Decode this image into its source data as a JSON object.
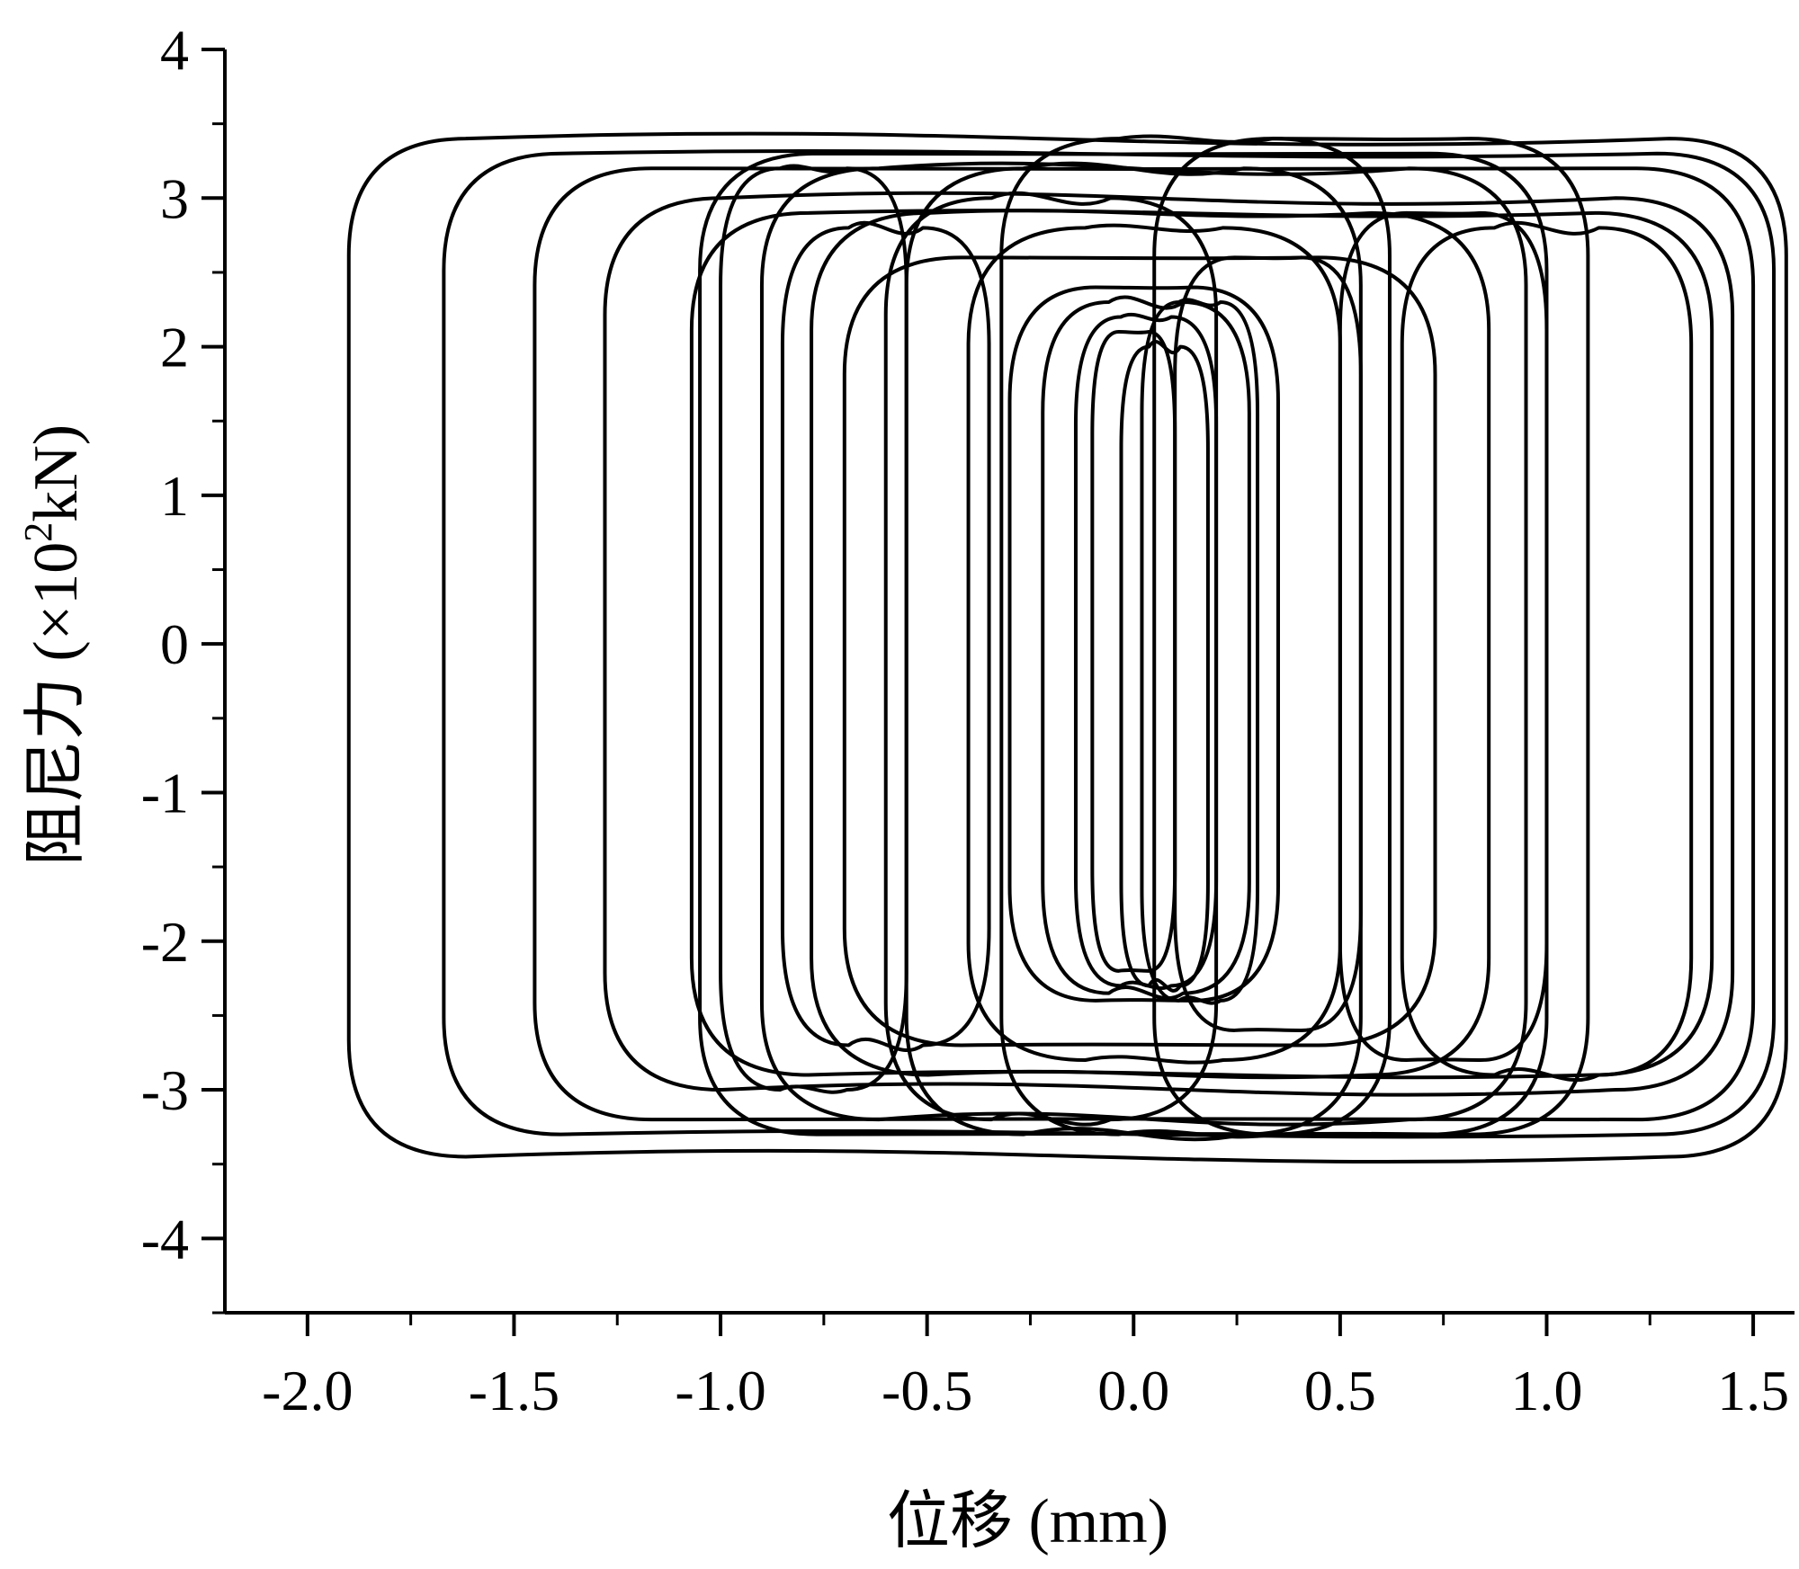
{
  "chart_data": {
    "type": "line",
    "title": "",
    "xlabel": "位移 (mm)",
    "ylabel_main": "阻尼力 (×10",
    "ylabel_sup": "2",
    "ylabel_tail": "kN)",
    "xlim": [
      -2.2,
      1.6
    ],
    "ylim": [
      -4.5,
      4.0
    ],
    "x_ticks": [
      -2.0,
      -1.5,
      -1.0,
      -0.5,
      0.0,
      0.5,
      1.0,
      1.5
    ],
    "x_tick_labels": [
      "-2.0",
      "-1.5",
      "-1.0",
      "-0.5",
      "0.0",
      "0.5",
      "1.0",
      "1.5"
    ],
    "y_ticks": [
      -4,
      -3,
      -2,
      -1,
      0,
      1,
      2,
      3,
      4
    ],
    "y_tick_labels": [
      "-4",
      "-3",
      "-2",
      "-1",
      "0",
      "1",
      "2",
      "3",
      "4"
    ],
    "grid": false,
    "legend": "none",
    "line_color": "#000000",
    "loops": [
      {
        "xmin": -1.9,
        "xmax": 1.58,
        "ytop": 3.4,
        "ybot": -3.45
      },
      {
        "xmin": -1.67,
        "xmax": 1.55,
        "ytop": 3.3,
        "ybot": -3.3
      },
      {
        "xmin": -1.45,
        "xmax": 1.5,
        "ytop": 3.2,
        "ybot": -3.2
      },
      {
        "xmin": -1.28,
        "xmax": 1.45,
        "ytop": 3.0,
        "ybot": -3.0
      },
      {
        "xmin": -1.07,
        "xmax": 1.4,
        "ytop": 2.9,
        "ybot": -2.9
      },
      {
        "xmin": -1.05,
        "xmax": 1.0,
        "ytop": 3.3,
        "ybot": -3.3
      },
      {
        "xmin": -0.9,
        "xmax": 0.95,
        "ytop": 3.2,
        "ybot": -3.2
      },
      {
        "xmin": -0.78,
        "xmax": 0.86,
        "ytop": 2.9,
        "ybot": -2.9
      },
      {
        "xmin": -0.7,
        "xmax": 0.73,
        "ytop": 2.6,
        "ybot": -2.7
      },
      {
        "xmin": -0.55,
        "xmax": 0.55,
        "ytop": 3.2,
        "ybot": -3.3
      },
      {
        "xmin": -0.4,
        "xmax": 0.5,
        "ytop": 2.8,
        "ybot": -2.8
      },
      {
        "xmin": -0.3,
        "xmax": 0.35,
        "ytop": 2.4,
        "ybot": -2.4
      },
      {
        "xmin": -0.22,
        "xmax": 0.28,
        "ytop": 2.3,
        "ybot": -2.35
      },
      {
        "xmin": -0.14,
        "xmax": 0.2,
        "ytop": 2.2,
        "ybot": -2.3
      },
      {
        "xmin": -0.1,
        "xmax": 0.1,
        "ytop": 2.1,
        "ybot": -2.2
      },
      {
        "xmin": -0.03,
        "xmax": 0.18,
        "ytop": 2.0,
        "ybot": -2.3
      },
      {
        "xmin": 0.02,
        "xmax": 0.3,
        "ytop": 2.3,
        "ybot": -2.4
      },
      {
        "xmin": 0.1,
        "xmax": 0.55,
        "ytop": 2.6,
        "ybot": -2.6
      },
      {
        "xmin": -0.85,
        "xmax": -0.35,
        "ytop": 2.8,
        "ybot": -2.7
      },
      {
        "xmin": -1.0,
        "xmax": -0.55,
        "ytop": 3.2,
        "ybot": -3.0
      },
      {
        "xmin": 0.5,
        "xmax": 1.0,
        "ytop": 2.9,
        "ybot": -2.8
      },
      {
        "xmin": 0.65,
        "xmax": 1.35,
        "ytop": 2.8,
        "ybot": -2.9
      },
      {
        "xmin": -0.32,
        "xmax": 0.62,
        "ytop": 3.4,
        "ybot": -3.3
      },
      {
        "xmin": 0.05,
        "xmax": 1.1,
        "ytop": 3.4,
        "ybot": -3.3
      },
      {
        "xmin": -0.6,
        "xmax": 0.2,
        "ytop": 3.0,
        "ybot": -3.2
      }
    ]
  }
}
